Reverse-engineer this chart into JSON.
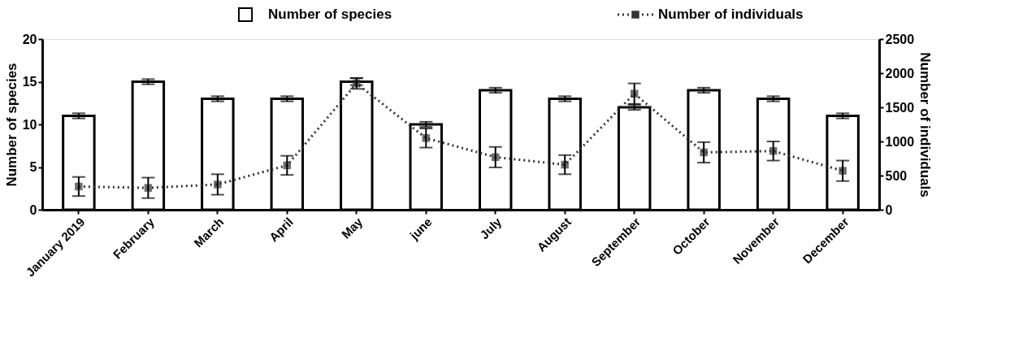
{
  "chart_data": {
    "type": "bar",
    "categories": [
      "January 2019",
      "February",
      "March",
      "April",
      "May",
      "june",
      "July",
      "August",
      "September",
      "October",
      "November",
      "December"
    ],
    "series": [
      {
        "name": "Number of species",
        "color": "#ffffff",
        "values": [
          11,
          15,
          13,
          13,
          15,
          10,
          14,
          13,
          12,
          14,
          13,
          11
        ],
        "errors": [
          0.3,
          0.3,
          0.3,
          0.3,
          0.4,
          0.3,
          0.3,
          0.3,
          0.3,
          0.3,
          0.3,
          0.3
        ]
      },
      {
        "name": "Number of individuals",
        "type": "line",
        "axis": "y2",
        "color": "#333333",
        "marker": "square",
        "line_style": "dotted",
        "values": [
          340,
          320,
          370,
          650,
          1850,
          1050,
          770,
          660,
          1700,
          840,
          860,
          570
        ],
        "errors": [
          140,
          150,
          150,
          140,
          80,
          140,
          150,
          140,
          150,
          150,
          140,
          150
        ]
      }
    ],
    "ylabel": "Number of species",
    "y2label": "Number of individuals",
    "ylim": [
      0,
      20
    ],
    "yticks": [
      0,
      5,
      10,
      15,
      20
    ],
    "y2lim": [
      0,
      2500
    ],
    "y2ticks": [
      0,
      500,
      1000,
      1500,
      2000,
      2500
    ],
    "grid": false,
    "legend": "top"
  }
}
